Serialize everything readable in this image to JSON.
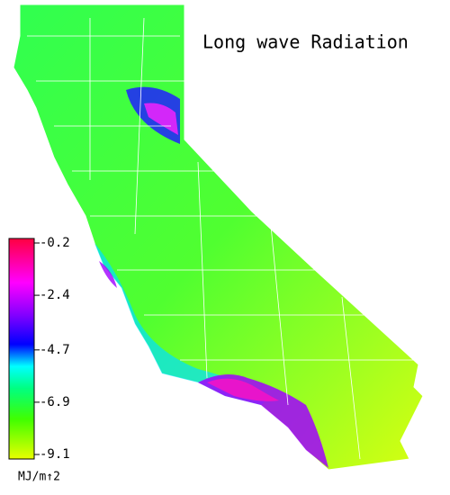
{
  "title": "Long wave Radiation",
  "colorbar": {
    "ticks": [
      -0.2,
      -2.4,
      -4.7,
      -6.9,
      -9.1
    ],
    "label": "MJ/m↑2"
  }
}
